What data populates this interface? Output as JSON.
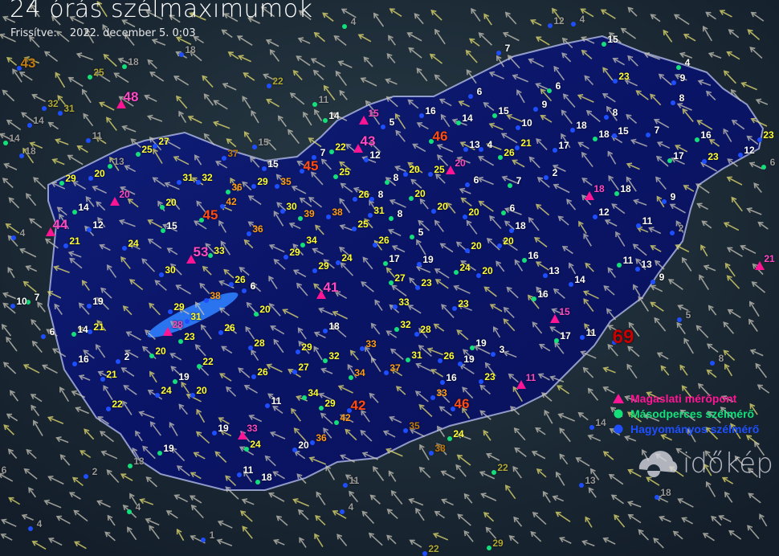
{
  "title": "24 órás szélmaximumok",
  "updated_label": "Frissítve:",
  "updated_value": "2022. december 5. 0:03",
  "legend": [
    {
      "label": "Magaslati mérőpont",
      "marker": "triangle",
      "color": "#ff1493"
    },
    {
      "label": "Másodperces szélmérő",
      "marker": "circle",
      "color": "#14e07a"
    },
    {
      "label": "Hagyományos szélmérő",
      "marker": "circle",
      "color": "#1e4fff"
    }
  ],
  "logo": "időkép",
  "colors": {
    "w": "#ffffff",
    "y": "#ffff33",
    "o": "#ff9c1a",
    "r": "#ff4a14",
    "p": "#ff49c8",
    "dr": "#c80000",
    "dim": "#9a9a9a",
    "dy": "#b0a838",
    "do": "#c07a10"
  },
  "stations": [
    {
      "v": "15",
      "c": "w"
    },
    {
      "v": "7",
      "c": "w"
    },
    {
      "v": "23",
      "c": "y"
    },
    {
      "v": "4",
      "c": "w"
    },
    {
      "v": "9",
      "c": "w"
    },
    {
      "v": "8",
      "c": "w"
    },
    {
      "v": "6",
      "c": "w"
    },
    {
      "v": "6",
      "c": "w"
    },
    {
      "v": "9",
      "c": "w"
    },
    {
      "v": "15",
      "c": "w"
    },
    {
      "v": "8",
      "c": "w"
    },
    {
      "v": "16",
      "c": "w"
    },
    {
      "v": "14",
      "c": "w"
    },
    {
      "v": "15",
      "c": "p"
    },
    {
      "v": "5",
      "c": "w"
    },
    {
      "v": "14",
      "c": "w"
    },
    {
      "v": "10",
      "c": "w"
    },
    {
      "v": "18",
      "c": "w"
    },
    {
      "v": "18",
      "c": "w"
    },
    {
      "v": "15",
      "c": "w"
    },
    {
      "v": "7",
      "c": "w"
    },
    {
      "v": "16",
      "c": "w"
    },
    {
      "v": "23",
      "c": "y"
    },
    {
      "v": "12",
      "c": "w"
    },
    {
      "v": "46",
      "c": "r"
    },
    {
      "v": "13",
      "c": "w"
    },
    {
      "v": "4",
      "c": "w"
    },
    {
      "v": "26",
      "c": "y"
    },
    {
      "v": "21",
      "c": "y"
    },
    {
      "v": "17",
      "c": "w"
    },
    {
      "v": "17",
      "c": "w"
    },
    {
      "v": "23",
      "c": "y"
    },
    {
      "v": "43",
      "c": "p"
    },
    {
      "v": "22",
      "c": "y"
    },
    {
      "v": "12",
      "c": "w"
    },
    {
      "v": "7",
      "c": "w"
    },
    {
      "v": "20",
      "c": "p"
    },
    {
      "v": "25",
      "c": "y"
    },
    {
      "v": "20",
      "c": "y"
    },
    {
      "v": "8",
      "c": "w"
    },
    {
      "v": "6",
      "c": "w"
    },
    {
      "v": "2",
      "c": "w"
    },
    {
      "v": "7",
      "c": "w"
    },
    {
      "v": "15",
      "c": "w"
    },
    {
      "v": "45",
      "c": "r"
    },
    {
      "v": "25",
      "c": "y"
    },
    {
      "v": "35",
      "c": "o"
    },
    {
      "v": "29",
      "c": "y"
    },
    {
      "v": "36",
      "c": "o"
    },
    {
      "v": "32",
      "c": "y"
    },
    {
      "v": "31",
      "c": "y"
    },
    {
      "v": "25",
      "c": "y"
    },
    {
      "v": "27",
      "c": "y"
    },
    {
      "v": "37",
      "c": "do"
    },
    {
      "v": "29",
      "c": "y"
    },
    {
      "v": "20",
      "c": "y"
    },
    {
      "v": "20",
      "c": "p"
    },
    {
      "v": "20",
      "c": "y"
    },
    {
      "v": "42",
      "c": "o"
    },
    {
      "v": "26",
      "c": "y"
    },
    {
      "v": "20",
      "c": "y"
    },
    {
      "v": "8",
      "c": "w"
    },
    {
      "v": "18",
      "c": "p"
    },
    {
      "v": "18",
      "c": "w"
    },
    {
      "v": "9",
      "c": "w"
    },
    {
      "v": "30",
      "c": "y"
    },
    {
      "v": "39",
      "c": "o"
    },
    {
      "v": "38",
      "c": "o"
    },
    {
      "v": "31",
      "c": "y"
    },
    {
      "v": "8",
      "c": "w"
    },
    {
      "v": "20",
      "c": "y"
    },
    {
      "v": "20",
      "c": "y"
    },
    {
      "v": "6",
      "c": "w"
    },
    {
      "v": "12",
      "c": "w"
    },
    {
      "v": "11",
      "c": "w"
    },
    {
      "v": "45",
      "c": "r"
    },
    {
      "v": "25",
      "c": "y"
    },
    {
      "v": "36",
      "c": "o"
    },
    {
      "v": "14",
      "c": "w"
    },
    {
      "v": "12",
      "c": "w"
    },
    {
      "v": "44",
      "c": "p"
    },
    {
      "v": "15",
      "c": "w"
    },
    {
      "v": "18",
      "c": "w"
    },
    {
      "v": "20",
      "c": "y"
    },
    {
      "v": "5",
      "c": "w"
    },
    {
      "v": "21",
      "c": "y"
    },
    {
      "v": "24",
      "c": "y"
    },
    {
      "v": "34",
      "c": "y"
    },
    {
      "v": "26",
      "c": "y"
    },
    {
      "v": "53",
      "c": "p"
    },
    {
      "v": "33",
      "c": "y"
    },
    {
      "v": "29",
      "c": "y"
    },
    {
      "v": "24",
      "c": "y"
    },
    {
      "v": "17",
      "c": "w"
    },
    {
      "v": "19",
      "c": "w"
    },
    {
      "v": "20",
      "c": "y"
    },
    {
      "v": "16",
      "c": "w"
    },
    {
      "v": "30",
      "c": "y"
    },
    {
      "v": "29",
      "c": "y"
    },
    {
      "v": "24",
      "c": "y"
    },
    {
      "v": "20",
      "c": "y"
    },
    {
      "v": "13",
      "c": "w"
    },
    {
      "v": "11",
      "c": "w"
    },
    {
      "v": "13",
      "c": "w"
    },
    {
      "v": "9",
      "c": "w"
    },
    {
      "v": "21",
      "c": "p"
    },
    {
      "v": "26",
      "c": "y"
    },
    {
      "v": "6",
      "c": "w"
    },
    {
      "v": "27",
      "c": "y"
    },
    {
      "v": "23",
      "c": "y"
    },
    {
      "v": "14",
      "c": "w"
    },
    {
      "v": "41",
      "c": "p"
    },
    {
      "v": "38",
      "c": "o"
    },
    {
      "v": "10",
      "c": "w"
    },
    {
      "v": "7",
      "c": "w"
    },
    {
      "v": "19",
      "c": "w"
    },
    {
      "v": "29",
      "c": "y"
    },
    {
      "v": "20",
      "c": "y"
    },
    {
      "v": "33",
      "c": "y"
    },
    {
      "v": "23",
      "c": "y"
    },
    {
      "v": "16",
      "c": "w"
    },
    {
      "v": "31",
      "c": "y"
    },
    {
      "v": "21",
      "c": "y"
    },
    {
      "v": "14",
      "c": "w"
    },
    {
      "v": "6",
      "c": "w"
    },
    {
      "v": "28",
      "c": "p"
    },
    {
      "v": "23",
      "c": "y"
    },
    {
      "v": "26",
      "c": "y"
    },
    {
      "v": "18",
      "c": "w"
    },
    {
      "v": "32",
      "c": "y"
    },
    {
      "v": "28",
      "c": "y"
    },
    {
      "v": "15",
      "c": "p"
    },
    {
      "v": "17",
      "c": "w"
    },
    {
      "v": "11",
      "c": "w"
    },
    {
      "v": "69",
      "c": "dr"
    },
    {
      "v": "20",
      "c": "y"
    },
    {
      "v": "28",
      "c": "y"
    },
    {
      "v": "33",
      "c": "o"
    },
    {
      "v": "31",
      "c": "y"
    },
    {
      "v": "26",
      "c": "y"
    },
    {
      "v": "19",
      "c": "w"
    },
    {
      "v": "19",
      "c": "w"
    },
    {
      "v": "3",
      "c": "w"
    },
    {
      "v": "29",
      "c": "y"
    },
    {
      "v": "32",
      "c": "y"
    },
    {
      "v": "16",
      "c": "w"
    },
    {
      "v": "2",
      "c": "w"
    },
    {
      "v": "22",
      "c": "y"
    },
    {
      "v": "37",
      "c": "o"
    },
    {
      "v": "21",
      "c": "y"
    },
    {
      "v": "19",
      "c": "w"
    },
    {
      "v": "26",
      "c": "y"
    },
    {
      "v": "27",
      "c": "y"
    },
    {
      "v": "34",
      "c": "o"
    },
    {
      "v": "16",
      "c": "w"
    },
    {
      "v": "23",
      "c": "y"
    },
    {
      "v": "11",
      "c": "p"
    },
    {
      "v": "24",
      "c": "y"
    },
    {
      "v": "20",
      "c": "y"
    },
    {
      "v": "34",
      "c": "y"
    },
    {
      "v": "11",
      "c": "w"
    },
    {
      "v": "33",
      "c": "o"
    },
    {
      "v": "29",
      "c": "y"
    },
    {
      "v": "42",
      "c": "r"
    },
    {
      "v": "46",
      "c": "r"
    },
    {
      "v": "42",
      "c": "o"
    },
    {
      "v": "22",
      "c": "y"
    },
    {
      "v": "35",
      "c": "do"
    },
    {
      "v": "24",
      "c": "y"
    },
    {
      "v": "19",
      "c": "w"
    },
    {
      "v": "33",
      "c": "p"
    },
    {
      "v": "24",
      "c": "y"
    },
    {
      "v": "36",
      "c": "o"
    },
    {
      "v": "20",
      "c": "w"
    },
    {
      "v": "19",
      "c": "w"
    },
    {
      "v": "38",
      "c": "do"
    },
    {
      "v": "11",
      "c": "w"
    },
    {
      "v": "18",
      "c": "w"
    },
    {
      "v": "43",
      "c": "do"
    },
    {
      "v": "48",
      "c": "p"
    },
    {
      "v": "25",
      "c": "dy"
    },
    {
      "v": "32",
      "c": "dy"
    },
    {
      "v": "31",
      "c": "dy"
    },
    {
      "v": "18",
      "c": "dim"
    },
    {
      "v": "18",
      "c": "dim"
    },
    {
      "v": "22",
      "c": "dy"
    },
    {
      "v": "11",
      "c": "dim"
    },
    {
      "v": "15",
      "c": "dim"
    },
    {
      "v": "12",
      "c": "dim"
    },
    {
      "v": "4",
      "c": "dim"
    },
    {
      "v": "4",
      "c": "dim"
    },
    {
      "v": "14",
      "c": "dim"
    },
    {
      "v": "14",
      "c": "dim"
    },
    {
      "v": "18",
      "c": "dim"
    },
    {
      "v": "11",
      "c": "dim"
    },
    {
      "v": "13",
      "c": "dim"
    },
    {
      "v": "2",
      "c": "dim"
    },
    {
      "v": "5",
      "c": "dim"
    },
    {
      "v": "6",
      "c": "dim"
    },
    {
      "v": "8",
      "c": "dim"
    },
    {
      "v": "14",
      "c": "dim"
    },
    {
      "v": "13",
      "c": "dim"
    },
    {
      "v": "2",
      "c": "dim"
    },
    {
      "v": "11",
      "c": "dim"
    },
    {
      "v": "22",
      "c": "dy"
    },
    {
      "v": "13",
      "c": "dim"
    },
    {
      "v": "18",
      "c": "dim"
    },
    {
      "v": "4",
      "c": "dim"
    },
    {
      "v": "1",
      "c": "dim"
    },
    {
      "v": "22",
      "c": "dy"
    },
    {
      "v": "29",
      "c": "dy"
    },
    {
      "v": "4",
      "c": "dim"
    },
    {
      "v": "4",
      "c": "dim"
    },
    {
      "v": "6",
      "c": "dim"
    },
    {
      "v": "4",
      "c": "dim"
    }
  ]
}
